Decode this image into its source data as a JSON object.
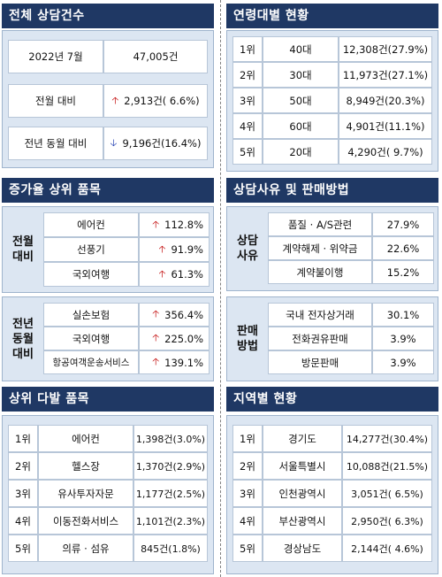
{
  "total": {
    "title": "전체 상담건수",
    "period_label": "2022년 7월",
    "period_value": "47,005건",
    "mom_label": "전월 대비",
    "mom_value": "2,913건( 6.6%)",
    "yoy_label": "전년 동월 대비",
    "yoy_value": "9,196건(16.4%)"
  },
  "age": {
    "title": "연령대별 현황",
    "rows": [
      {
        "rank": "1위",
        "name": "40대",
        "value": "12,308건(27.9%)"
      },
      {
        "rank": "2위",
        "name": "30대",
        "value": "11,973건(27.1%)"
      },
      {
        "rank": "3위",
        "name": "50대",
        "value": "8,949건(20.3%)"
      },
      {
        "rank": "4위",
        "name": "60대",
        "value": "4,901건(11.1%)"
      },
      {
        "rank": "5위",
        "name": "20대",
        "value": "4,290건( 9.7%)"
      }
    ]
  },
  "growth": {
    "title": "증가율 상위 품목",
    "groups": [
      {
        "label_line1": "전월",
        "label_line2": "대비",
        "label_line3": "",
        "items": [
          {
            "name": "에어컨",
            "value": "112.8%"
          },
          {
            "name": "선풍기",
            "value": "91.9%"
          },
          {
            "name": "국외여행",
            "value": "61.3%"
          }
        ]
      },
      {
        "label_line1": "전년",
        "label_line2": "동월",
        "label_line3": "대비",
        "items": [
          {
            "name": "실손보험",
            "value": "356.4%"
          },
          {
            "name": "국외여행",
            "value": "225.0%"
          },
          {
            "name": "항공여객운송서비스",
            "value": "139.1%"
          }
        ]
      }
    ]
  },
  "reason": {
    "title": "상담사유 및 판매방법",
    "groups": [
      {
        "label_line1": "상담",
        "label_line2": "사유",
        "items": [
          {
            "name": "품질 · A/S관련",
            "value": "27.9%"
          },
          {
            "name": "계약해제 · 위약금",
            "value": "22.6%"
          },
          {
            "name": "계약불이행",
            "value": "15.2%"
          }
        ]
      },
      {
        "label_line1": "판매",
        "label_line2": "방법",
        "items": [
          {
            "name": "국내 전자상거래",
            "value": "30.1%"
          },
          {
            "name": "전화권유판매",
            "value": "3.9%"
          },
          {
            "name": "방문판매",
            "value": "3.9%"
          }
        ]
      }
    ]
  },
  "frequent": {
    "title": "상위 다발 품목",
    "rows": [
      {
        "rank": "1위",
        "name": "에어컨",
        "value": "1,398건(3.0%)"
      },
      {
        "rank": "2위",
        "name": "헬스장",
        "value": "1,370건(2.9%)"
      },
      {
        "rank": "3위",
        "name": "유사투자자문",
        "value": "1,177건(2.5%)"
      },
      {
        "rank": "4위",
        "name": "이동전화서비스",
        "value": "1,101건(2.3%)"
      },
      {
        "rank": "5위",
        "name": "의류 · 섬유",
        "value": "845건(1.8%)"
      }
    ]
  },
  "region": {
    "title": "지역별 현황",
    "rows": [
      {
        "rank": "1위",
        "name": "경기도",
        "value": "14,277건(30.4%)"
      },
      {
        "rank": "2위",
        "name": "서울특별시",
        "value": "10,088건(21.5%)"
      },
      {
        "rank": "3위",
        "name": "인천광역시",
        "value": "3,051건( 6.5%)"
      },
      {
        "rank": "4위",
        "name": "부산광역시",
        "value": "2,950건( 6.3%)"
      },
      {
        "rank": "5위",
        "name": "경상남도",
        "value": "2,144건( 4.6%)"
      }
    ]
  },
  "icons": {
    "up": "arrow-up-icon",
    "down": "arrow-down-icon"
  },
  "colors": {
    "header_bg": "#1f3864",
    "panel_bg": "#dce6f2",
    "up": "#c00000",
    "down": "#1f3cb0"
  }
}
